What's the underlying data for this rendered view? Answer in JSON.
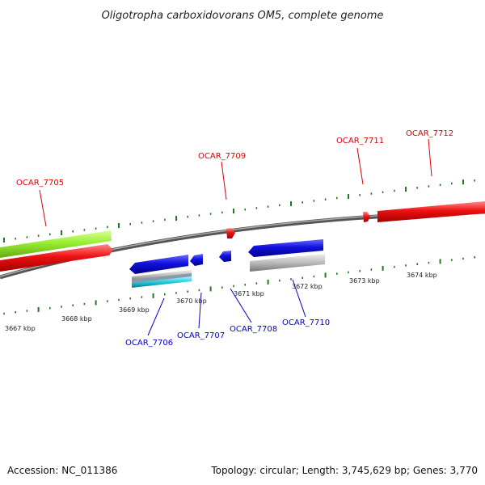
{
  "title": "Oligotropha carboxidovorans OM5, complete genome",
  "footer": {
    "accession": "Accession: NC_011386",
    "info": "Topology: circular; Length: 3,745,629 bp; Genes: 3,770"
  },
  "scale": {
    "unit": "kbp",
    "ticks": [
      "3667 kbp",
      "3668 kbp",
      "3669 kbp",
      "3670 kbp",
      "3671 kbp",
      "3672 kbp",
      "3673 kbp",
      "3674 kbp"
    ]
  },
  "genes_forward": [
    "OCAR_7705",
    "OCAR_7709",
    "OCAR_7711",
    "OCAR_7712"
  ],
  "genes_reverse": [
    "OCAR_7706",
    "OCAR_7707",
    "OCAR_7708",
    "OCAR_7710"
  ],
  "colors": {
    "forward_label": "#dd0000",
    "reverse_label": "#0000cc",
    "forward_gene": "#ee1111",
    "reverse_gene": "#1111dd",
    "cds_feature": "#99ee33",
    "rna_feature": "#bbbbbb",
    "misc_feature": "#22ccdd",
    "tick": "#227722",
    "backbone": "#888888"
  }
}
